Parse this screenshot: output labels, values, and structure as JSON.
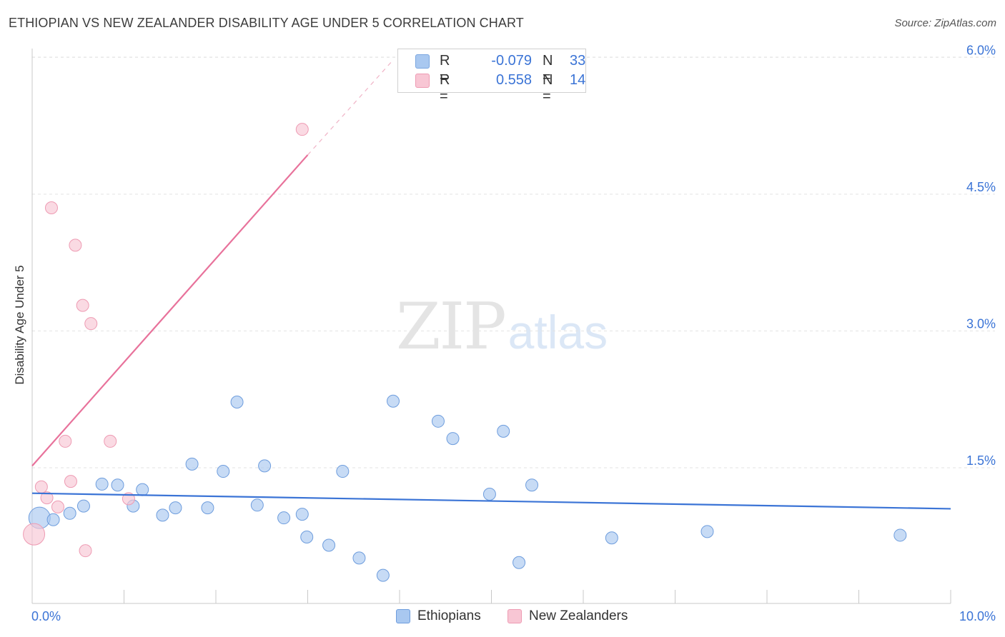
{
  "header": {
    "title": "ETHIOPIAN VS NEW ZEALANDER DISABILITY AGE UNDER 5 CORRELATION CHART",
    "source": "Source: ZipAtlas.com"
  },
  "watermark": {
    "zip": "ZIP",
    "atlas": "atlas"
  },
  "legend_top": {
    "rows": [
      {
        "r_label": "R =",
        "r_value": "-0.079",
        "n_label": "N =",
        "n_value": "33",
        "color": "#a9c8f0",
        "border": "#7aa6e0"
      },
      {
        "r_label": "R =",
        "r_value": "0.558",
        "n_label": "N =",
        "n_value": "14",
        "color": "#f8c6d4",
        "border": "#ee9bb3"
      }
    ]
  },
  "chart_data": {
    "type": "scatter",
    "title": "ETHIOPIAN VS NEW ZEALANDER DISABILITY AGE UNDER 5 CORRELATION CHART",
    "ylabel": "Disability Age Under 5",
    "xlabel": "",
    "xlim": [
      0,
      10
    ],
    "ylim": [
      0,
      6.2
    ],
    "x_tick_labels": [
      "0.0%",
      "10.0%"
    ],
    "y_ticks": [
      1.5,
      3.0,
      4.5,
      6.0
    ],
    "y_tick_labels": [
      "1.5%",
      "3.0%",
      "4.5%",
      "6.0%"
    ],
    "grid": true,
    "legend_position": "bottom",
    "series": [
      {
        "name": "Ethiopians",
        "color": "#a9c8f0",
        "stroke": "#6e9ddd",
        "trend_color": "#3b74d6",
        "trend": {
          "x0": 0.0,
          "y0": 1.22,
          "x1": 10.0,
          "y1": 1.05
        },
        "points": [
          {
            "x": 0.08,
            "y": 0.95,
            "big": true
          },
          {
            "x": 0.23,
            "y": 0.93
          },
          {
            "x": 0.41,
            "y": 1.0
          },
          {
            "x": 0.56,
            "y": 1.08
          },
          {
            "x": 0.76,
            "y": 1.32
          },
          {
            "x": 0.93,
            "y": 1.31
          },
          {
            "x": 1.1,
            "y": 1.08
          },
          {
            "x": 1.2,
            "y": 1.26
          },
          {
            "x": 1.42,
            "y": 0.98
          },
          {
            "x": 1.56,
            "y": 1.06
          },
          {
            "x": 1.74,
            "y": 1.54
          },
          {
            "x": 1.91,
            "y": 1.06
          },
          {
            "x": 2.08,
            "y": 1.46
          },
          {
            "x": 2.23,
            "y": 2.22
          },
          {
            "x": 2.45,
            "y": 1.09
          },
          {
            "x": 2.53,
            "y": 1.52
          },
          {
            "x": 2.74,
            "y": 0.95
          },
          {
            "x": 2.94,
            "y": 0.99
          },
          {
            "x": 2.99,
            "y": 0.74
          },
          {
            "x": 3.23,
            "y": 0.65
          },
          {
            "x": 3.38,
            "y": 1.46
          },
          {
            "x": 3.56,
            "y": 0.51
          },
          {
            "x": 3.82,
            "y": 0.32
          },
          {
            "x": 3.93,
            "y": 2.23
          },
          {
            "x": 4.42,
            "y": 2.01
          },
          {
            "x": 4.58,
            "y": 1.82
          },
          {
            "x": 4.98,
            "y": 1.21
          },
          {
            "x": 5.13,
            "y": 1.9
          },
          {
            "x": 5.3,
            "y": 0.46
          },
          {
            "x": 5.44,
            "y": 1.31
          },
          {
            "x": 6.31,
            "y": 0.73
          },
          {
            "x": 7.35,
            "y": 0.8
          },
          {
            "x": 9.45,
            "y": 0.76
          }
        ]
      },
      {
        "name": "New Zealanders",
        "color": "#f8c6d4",
        "stroke": "#ee9bb3",
        "trend_color": "#e8729b",
        "trend": {
          "x0": 0.0,
          "y0": 1.52,
          "x1": 3.0,
          "y1": 4.93
        },
        "trend_dashed": {
          "x0": 3.0,
          "y0": 4.93,
          "x1": 3.92,
          "y1": 5.96
        },
        "points": [
          {
            "x": 0.02,
            "y": 0.77,
            "big": true
          },
          {
            "x": 0.1,
            "y": 1.29
          },
          {
            "x": 0.16,
            "y": 1.17
          },
          {
            "x": 0.21,
            "y": 4.35
          },
          {
            "x": 0.28,
            "y": 1.07
          },
          {
            "x": 0.36,
            "y": 1.79
          },
          {
            "x": 0.42,
            "y": 1.35
          },
          {
            "x": 0.47,
            "y": 3.94
          },
          {
            "x": 0.55,
            "y": 3.28
          },
          {
            "x": 0.58,
            "y": 0.59
          },
          {
            "x": 0.64,
            "y": 3.08
          },
          {
            "x": 0.85,
            "y": 1.79
          },
          {
            "x": 1.05,
            "y": 1.16
          },
          {
            "x": 2.94,
            "y": 5.21
          }
        ]
      }
    ]
  }
}
